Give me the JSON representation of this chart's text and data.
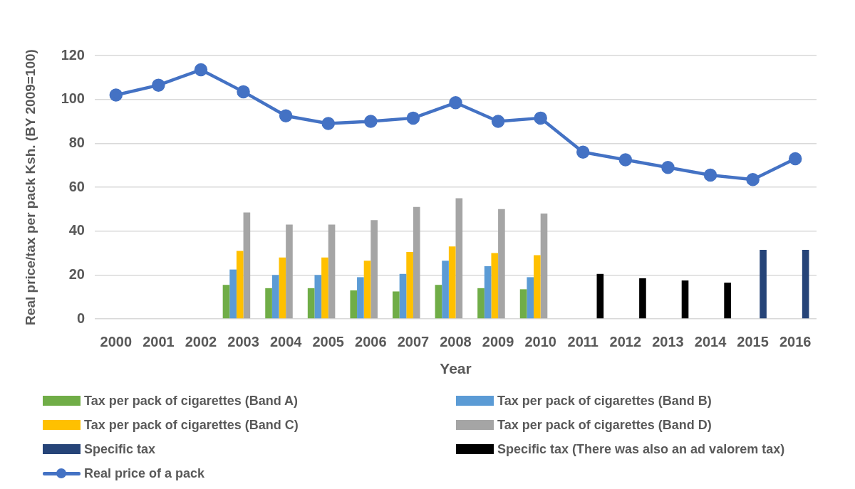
{
  "chart_data": {
    "type": "bar",
    "categories": [
      "2000",
      "2001",
      "2002",
      "2003",
      "2004",
      "2005",
      "2006",
      "2007",
      "2008",
      "2009",
      "2010",
      "2011",
      "2012",
      "2013",
      "2014",
      "2015",
      "2016"
    ],
    "xlabel": "Year",
    "ylabel": "Real price/tax per pack Ksh. (BY 2009=100)",
    "ylim": [
      0,
      120
    ],
    "yticks": [
      0,
      20,
      40,
      60,
      80,
      100,
      120
    ],
    "grid": "y",
    "legend": "bottom",
    "marker": "circle",
    "series": [
      {
        "name": "Tax per pack of cigarettes (Band A)",
        "color": "#70ad47",
        "values": [
          null,
          null,
          null,
          15.5,
          14,
          14,
          13,
          12.5,
          15.5,
          14,
          13.5,
          null,
          null,
          null,
          null,
          null,
          null
        ]
      },
      {
        "name": "Tax per pack of cigarettes (Band B)",
        "color": "#5b9bd5",
        "values": [
          null,
          null,
          null,
          22.5,
          20,
          20,
          19,
          20.5,
          26.5,
          24,
          19,
          null,
          null,
          null,
          null,
          null,
          null
        ]
      },
      {
        "name": "Tax per pack of cigarettes (Band C)",
        "color": "#ffc000",
        "values": [
          null,
          null,
          null,
          31,
          28,
          28,
          26.5,
          30.5,
          33,
          30,
          29,
          null,
          null,
          null,
          null,
          null,
          null
        ]
      },
      {
        "name": "Tax per pack of cigarettes (Band D)",
        "color": "#a5a5a5",
        "values": [
          null,
          null,
          null,
          48.5,
          43,
          43,
          45,
          51,
          55,
          50,
          48,
          null,
          null,
          null,
          null,
          null,
          null
        ]
      },
      {
        "name": "Specific tax",
        "color": "#264478",
        "values": [
          null,
          null,
          null,
          null,
          null,
          null,
          null,
          null,
          null,
          null,
          null,
          null,
          null,
          null,
          null,
          31.5,
          31.5
        ]
      },
      {
        "name": "Specific tax (There was also an ad valorem tax)",
        "color": "#000000",
        "values": [
          null,
          null,
          null,
          null,
          null,
          null,
          null,
          null,
          null,
          null,
          null,
          20.5,
          18.5,
          17.5,
          16.5,
          null,
          null
        ]
      },
      {
        "name": "Real price of a pack",
        "type": "line",
        "color": "#4472c4",
        "values": [
          102,
          106.5,
          113.5,
          103.5,
          92.5,
          89,
          90,
          91.5,
          98.5,
          90,
          91.5,
          76,
          72.5,
          69,
          65.5,
          63.5,
          73
        ]
      }
    ]
  }
}
